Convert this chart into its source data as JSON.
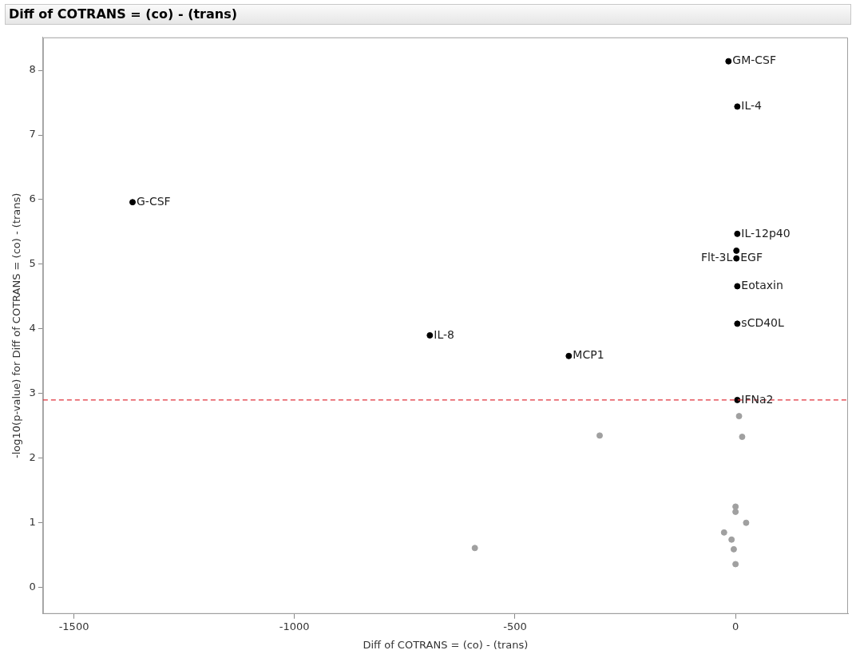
{
  "chart_data": {
    "type": "scatter",
    "title": "Diff of COTRANS = (co) - (trans)",
    "xlabel": "Diff of COTRANS = (co) - (trans)",
    "ylabel": "-log10(p-value) for Diff of COTRANS = (co) - (trans)",
    "series": [
      {
        "color": "#000000",
        "x": [
          -16,
          4,
          -1367,
          4,
          2,
          2,
          4,
          4,
          -693,
          -378,
          4
        ],
        "values": [
          8.14,
          7.44,
          5.96,
          5.47,
          5.21,
          5.09,
          4.66,
          4.08,
          3.9,
          3.58,
          2.9
        ]
      },
      {
        "color": "#a0a0a0",
        "x": [
          8,
          -308,
          15,
          0,
          0,
          24,
          -26,
          -9,
          -4,
          0,
          -591
        ],
        "values": [
          2.65,
          2.35,
          2.33,
          1.25,
          1.17,
          1.0,
          0.85,
          0.74,
          0.59,
          0.36,
          0.61
        ]
      }
    ],
    "annotations": [
      {
        "text": "GM-CSF",
        "x": -16,
        "y": 8.14
      },
      {
        "text": "IL-4",
        "x": 4,
        "y": 7.44
      },
      {
        "text": "G-CSF",
        "x": -1367,
        "y": 5.96
      },
      {
        "text": "IL-12p40",
        "x": 4,
        "y": 5.47
      },
      {
        "text": "Flt-3L",
        "x": 2,
        "y": 5.21
      },
      {
        "text": "EGF",
        "x": 2,
        "y": 5.09
      },
      {
        "text": "Eotaxin",
        "x": 4,
        "y": 4.66
      },
      {
        "text": "sCD40L",
        "x": 4,
        "y": 4.08
      },
      {
        "text": "IL-8",
        "x": -693,
        "y": 3.9
      },
      {
        "text": "MCP1",
        "x": -378,
        "y": 3.58
      },
      {
        "text": "IFNa2",
        "x": 4,
        "y": 2.9
      }
    ],
    "ref_lines": [
      {
        "axis": "y",
        "value": 2.9,
        "color": "#e0303a",
        "line_style": "dashed"
      }
    ],
    "xlim": [
      -1570,
      255
    ],
    "xticks": [
      -1500,
      -1000,
      -500,
      0
    ],
    "ylim": [
      -0.41,
      8.51
    ],
    "yticks": [
      0,
      1,
      2,
      3,
      4,
      5,
      6,
      7,
      8
    ],
    "marker": "circle",
    "grid": false,
    "legend": false
  }
}
